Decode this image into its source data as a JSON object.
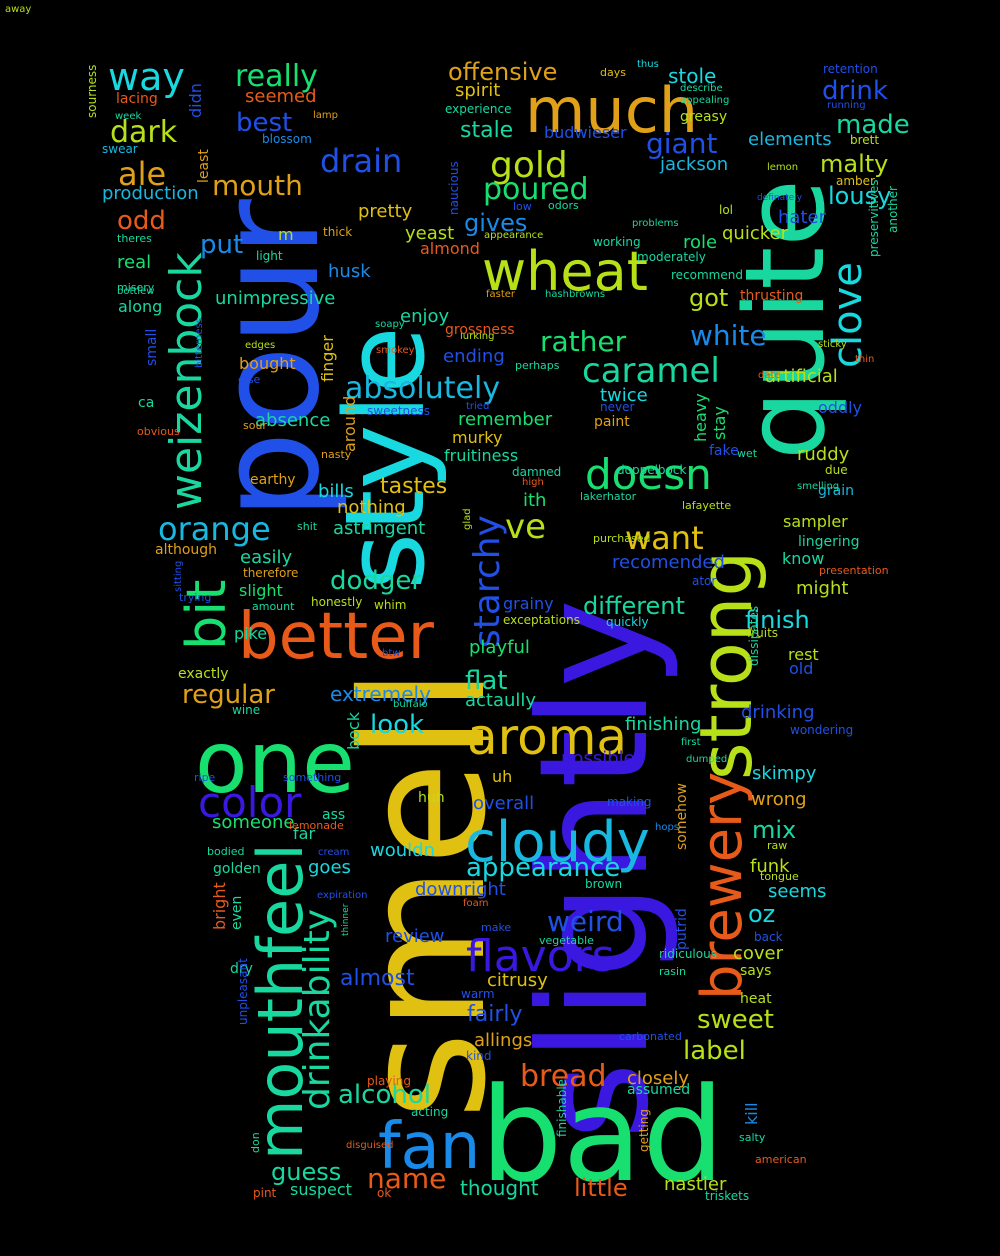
{
  "words": [
    {
      "text": "slightly",
      "color": "#3a18e0"
    },
    {
      "text": "smell",
      "color": "#e0c010"
    },
    {
      "text": "pour",
      "color": "#2050e8"
    },
    {
      "text": "style",
      "color": "#18d8e0"
    },
    {
      "text": "quite",
      "color": "#18d8a0"
    },
    {
      "text": "bad",
      "color": "#18e070"
    },
    {
      "text": "strong",
      "color": "#b8e018"
    },
    {
      "text": "mouthfeel",
      "color": "#18d8a0"
    },
    {
      "text": "one",
      "color": "#18e070"
    },
    {
      "text": "much",
      "color": "#e0a018"
    },
    {
      "text": "better",
      "color": "#e85a1a"
    },
    {
      "text": "fan",
      "color": "#1a8ae8"
    },
    {
      "text": "cloudy",
      "color": "#18b8e0"
    },
    {
      "text": "aroma",
      "color": "#e0c010"
    },
    {
      "text": "wheat",
      "color": "#b8e018"
    },
    {
      "text": "brewery",
      "color": "#e85a1a"
    },
    {
      "text": "weizenbock",
      "color": "#18d8a0"
    },
    {
      "text": "bit",
      "color": "#18e070"
    },
    {
      "text": "color",
      "color": "#3a18e0"
    },
    {
      "text": "drinkability",
      "color": "#18d8a0"
    },
    {
      "text": "way",
      "color": "#18d8e0"
    },
    {
      "text": "flavors",
      "color": "#3a18e0"
    },
    {
      "text": "doesn",
      "color": "#18e070"
    },
    {
      "text": "clove",
      "color": "#18d8e0"
    },
    {
      "text": "bread",
      "color": "#e85a1a"
    },
    {
      "text": "starchy",
      "color": "#2050e8"
    },
    {
      "text": "drain",
      "color": "#2050e8"
    },
    {
      "text": "absolutely",
      "color": "#18b8e0"
    },
    {
      "text": "orange",
      "color": "#18b8e0"
    },
    {
      "text": "caramel",
      "color": "#18d8a0"
    },
    {
      "text": "really",
      "color": "#18e070"
    },
    {
      "text": "gold",
      "color": "#b8e018"
    },
    {
      "text": "dark",
      "color": "#b8e018"
    },
    {
      "text": "mouth",
      "color": "#e0a018"
    },
    {
      "text": "offensive",
      "color": "#e0a018"
    },
    {
      "text": "ale",
      "color": "#e0a018"
    },
    {
      "text": "best",
      "color": "#2050e8"
    },
    {
      "text": "made",
      "color": "#18d8a0"
    },
    {
      "text": "giant",
      "color": "#2050e8"
    },
    {
      "text": "malty",
      "color": "#b8e018"
    },
    {
      "text": "lousy",
      "color": "#18d8e0"
    },
    {
      "text": "poured",
      "color": "#18e070"
    },
    {
      "text": "drink",
      "color": "#2050e8"
    },
    {
      "text": "want",
      "color": "#e0c010"
    },
    {
      "text": "ve",
      "color": "#b8e018"
    },
    {
      "text": "different",
      "color": "#18d8a0"
    },
    {
      "text": "white",
      "color": "#1a8ae8"
    },
    {
      "text": "rather",
      "color": "#18e070"
    },
    {
      "text": "flat",
      "color": "#18d8a0"
    },
    {
      "text": "regular",
      "color": "#e0a018"
    },
    {
      "text": "appearance",
      "color": "#18d8e0"
    },
    {
      "text": "weird",
      "color": "#2050e8"
    },
    {
      "text": "name",
      "color": "#e85a1a"
    },
    {
      "text": "guess",
      "color": "#18d8a0"
    },
    {
      "text": "alcohol",
      "color": "#18d8a0"
    },
    {
      "text": "label",
      "color": "#b8e018"
    },
    {
      "text": "sweet",
      "color": "#b8e018"
    },
    {
      "text": "little",
      "color": "#e85a1a"
    },
    {
      "text": "dodger",
      "color": "#18d8a0"
    },
    {
      "text": "look",
      "color": "#18d8e0"
    },
    {
      "text": "finish",
      "color": "#18d8e0"
    },
    {
      "text": "put",
      "color": "#1a8ae8"
    },
    {
      "text": "tastes",
      "color": "#e0c010"
    },
    {
      "text": "gives",
      "color": "#1a8ae8"
    },
    {
      "text": "got",
      "color": "#b8e018"
    },
    {
      "text": "mix",
      "color": "#18d8a0"
    },
    {
      "text": "oz",
      "color": "#18d8e0"
    },
    {
      "text": "fairly",
      "color": "#2050e8"
    },
    {
      "text": "almost",
      "color": "#2050e8"
    },
    {
      "text": "stale",
      "color": "#18d8a0"
    },
    {
      "text": "odd",
      "color": "#e85a1a"
    },
    {
      "text": "pretty",
      "color": "#e0c010"
    },
    {
      "text": "spirit",
      "color": "#e0c010"
    },
    {
      "text": "stole",
      "color": "#18d8e0"
    },
    {
      "text": "elements",
      "color": "#18b8e0"
    },
    {
      "text": "jackson",
      "color": "#18b8e0"
    },
    {
      "text": "production",
      "color": "#18b8e0"
    },
    {
      "text": "unimpressive",
      "color": "#18d8a0"
    },
    {
      "text": "husk",
      "color": "#1a8ae8"
    },
    {
      "text": "enjoy",
      "color": "#18d8a0"
    },
    {
      "text": "ending",
      "color": "#2050e8"
    },
    {
      "text": "remember",
      "color": "#18e070"
    },
    {
      "text": "twice",
      "color": "#18d8e0"
    },
    {
      "text": "artificial",
      "color": "#b8e018"
    },
    {
      "text": "absence",
      "color": "#18d8a0"
    },
    {
      "text": "murky",
      "color": "#e0c010"
    },
    {
      "text": "fruitiness",
      "color": "#18d8a0"
    },
    {
      "text": "ruddy",
      "color": "#b8e018"
    },
    {
      "text": "sampler",
      "color": "#b8e018"
    },
    {
      "text": "recomended",
      "color": "#2050e8"
    },
    {
      "text": "playful",
      "color": "#18e070"
    },
    {
      "text": "extremely",
      "color": "#1a8ae8"
    },
    {
      "text": "actaully",
      "color": "#18d8a0"
    },
    {
      "text": "skimpy",
      "color": "#18d8e0"
    },
    {
      "text": "overall",
      "color": "#2050e8"
    },
    {
      "text": "wouldn",
      "color": "#18d8e0"
    },
    {
      "text": "downright",
      "color": "#2050e8"
    },
    {
      "text": "review",
      "color": "#2050e8"
    },
    {
      "text": "citrusy",
      "color": "#e0c010"
    },
    {
      "text": "closely",
      "color": "#e0a018"
    },
    {
      "text": "assumed",
      "color": "#18d8a0"
    },
    {
      "text": "thought",
      "color": "#18d8a0"
    },
    {
      "text": "nastier",
      "color": "#b8e018"
    },
    {
      "text": "suspect",
      "color": "#18d8a0"
    },
    {
      "text": "allings",
      "color": "#e0a018"
    },
    {
      "text": "possible",
      "color": "#3a18e0"
    },
    {
      "text": "finishing",
      "color": "#18d8a0"
    },
    {
      "text": "drinking",
      "color": "#2050e8"
    },
    {
      "text": "wrong",
      "color": "#e0a018"
    },
    {
      "text": "funk",
      "color": "#b8e018"
    },
    {
      "text": "seems",
      "color": "#18d8e0"
    },
    {
      "text": "cover",
      "color": "#b8e018"
    },
    {
      "text": "quicker",
      "color": "#b8e018"
    },
    {
      "text": "hater",
      "color": "#2050e8"
    },
    {
      "text": "role",
      "color": "#18e070"
    },
    {
      "text": "lacing",
      "color": "#e85a1a"
    },
    {
      "text": "seemed",
      "color": "#e85a1a"
    },
    {
      "text": "yeast",
      "color": "#b8e018"
    },
    {
      "text": "almond",
      "color": "#e85a1a"
    },
    {
      "text": "budwieser",
      "color": "#2050e8"
    },
    {
      "text": "bills",
      "color": "#18d8e0"
    },
    {
      "text": "nothing",
      "color": "#e0c010"
    },
    {
      "text": "astringent",
      "color": "#18d8a0"
    },
    {
      "text": "easily",
      "color": "#18d8a0"
    },
    {
      "text": "slight",
      "color": "#18e070"
    },
    {
      "text": "someone",
      "color": "#18e070"
    },
    {
      "text": "goes",
      "color": "#18d8e0"
    },
    {
      "text": "real",
      "color": "#18e070"
    },
    {
      "text": "along",
      "color": "#18d8a0"
    },
    {
      "text": "although",
      "color": "#e0a018"
    },
    {
      "text": "pike",
      "color": "#18d8a0"
    },
    {
      "text": "exactly",
      "color": "#b8e018"
    },
    {
      "text": "know",
      "color": "#18d8a0"
    },
    {
      "text": "might",
      "color": "#b8e018"
    },
    {
      "text": "lingering",
      "color": "#18d8a0"
    },
    {
      "text": "old",
      "color": "#2050e8"
    },
    {
      "text": "rest",
      "color": "#b8e018"
    },
    {
      "text": "heavy",
      "color": "#18e070"
    },
    {
      "text": "stay",
      "color": "#18e070"
    },
    {
      "text": "oddly",
      "color": "#2050e8"
    },
    {
      "text": "grain",
      "color": "#18b8e0"
    },
    {
      "text": "bock",
      "color": "#18d8a0"
    },
    {
      "text": "finger",
      "color": "#e0c010"
    },
    {
      "text": "around",
      "color": "#e0a018"
    },
    {
      "text": "ith",
      "color": "#18e070"
    },
    {
      "text": "uh",
      "color": "#e0c010"
    },
    {
      "text": "grainy",
      "color": "#2050e8"
    },
    {
      "text": "putrid",
      "color": "#2050e8"
    },
    {
      "text": "somehow",
      "color": "#e0a018"
    },
    {
      "text": "bright",
      "color": "#e85a1a"
    },
    {
      "text": "golden",
      "color": "#18d8a0"
    },
    {
      "text": "dry",
      "color": "#18d8a0"
    },
    {
      "text": "even",
      "color": "#18d8a0"
    },
    {
      "text": "ass",
      "color": "#18d8a0"
    },
    {
      "text": "far",
      "color": "#18d8a0"
    },
    {
      "text": "huh",
      "color": "#b8e018"
    },
    {
      "text": "kill",
      "color": "#1a8ae8"
    },
    {
      "text": "heat",
      "color": "#b8e018"
    },
    {
      "text": "says",
      "color": "#b8e018"
    },
    {
      "text": "back",
      "color": "#2050e8"
    },
    {
      "text": "ca",
      "color": "#18d8a0"
    },
    {
      "text": "m",
      "color": "#b8e018"
    },
    {
      "text": "small",
      "color": "#2050e8"
    },
    {
      "text": "bought",
      "color": "#e0a018"
    },
    {
      "text": "didn",
      "color": "#2050e8"
    },
    {
      "text": "least",
      "color": "#e0a018"
    },
    {
      "text": "swear",
      "color": "#18b8e0"
    },
    {
      "text": "sourness",
      "color": "#b8e018"
    },
    {
      "text": "week",
      "color": "#18d8a0"
    },
    {
      "text": "lamp",
      "color": "#e0a018"
    },
    {
      "text": "blossom",
      "color": "#1a8ae8"
    },
    {
      "text": "experience",
      "color": "#18d8a0"
    },
    {
      "text": "days",
      "color": "#e0c010"
    },
    {
      "text": "thus",
      "color": "#18d8e0"
    },
    {
      "text": "describe",
      "color": "#18d8a0"
    },
    {
      "text": "appealing",
      "color": "#18d8a0"
    },
    {
      "text": "greasy",
      "color": "#b8e018"
    },
    {
      "text": "retention",
      "color": "#2050e8"
    },
    {
      "text": "running",
      "color": "#2050e8"
    },
    {
      "text": "brett",
      "color": "#b8e018"
    },
    {
      "text": "amber",
      "color": "#e0c010"
    },
    {
      "text": "lemon",
      "color": "#b8e018"
    },
    {
      "text": "definately",
      "color": "#2050e8"
    },
    {
      "text": "lol",
      "color": "#b8e018"
    },
    {
      "text": "thick",
      "color": "#e0a018"
    },
    {
      "text": "naucious",
      "color": "#2050e8"
    },
    {
      "text": "low",
      "color": "#2050e8"
    },
    {
      "text": "odors",
      "color": "#18d8a0"
    },
    {
      "text": "appearance",
      "color": "#b8e018"
    },
    {
      "text": "problems",
      "color": "#18d8a0"
    },
    {
      "text": "moderately",
      "color": "#18d8a0"
    },
    {
      "text": "working",
      "color": "#18d8a0"
    },
    {
      "text": "recommend",
      "color": "#18d8a0"
    },
    {
      "text": "thrusting",
      "color": "#e85a1a"
    },
    {
      "text": "faster",
      "color": "#e0a018"
    },
    {
      "text": "hashbrowns",
      "color": "#18d8a0"
    },
    {
      "text": "soapy",
      "color": "#18d8a0"
    },
    {
      "text": "lurking",
      "color": "#b8e018"
    },
    {
      "text": "grossness",
      "color": "#e85a1a"
    },
    {
      "text": "smokey",
      "color": "#e85a1a"
    },
    {
      "text": "perhaps",
      "color": "#18d8a0"
    },
    {
      "text": "sticky",
      "color": "#b8e018"
    },
    {
      "text": "thin",
      "color": "#e85a1a"
    },
    {
      "text": "another",
      "color": "#18d8a0"
    },
    {
      "text": "preservitives",
      "color": "#18d8a0"
    },
    {
      "text": "date",
      "color": "#e85a1a"
    },
    {
      "text": "tried",
      "color": "#2050e8"
    },
    {
      "text": "never",
      "color": "#2050e8"
    },
    {
      "text": "paint",
      "color": "#e0a018"
    },
    {
      "text": "sweetness",
      "color": "#2050e8"
    },
    {
      "text": "sour",
      "color": "#e0a018"
    },
    {
      "text": "bitterness",
      "color": "#2050e8"
    },
    {
      "text": "obvious",
      "color": "#e85a1a"
    },
    {
      "text": "edges",
      "color": "#b8e018"
    },
    {
      "text": "else",
      "color": "#2050e8"
    },
    {
      "text": "light",
      "color": "#18d8a0"
    },
    {
      "text": "theres",
      "color": "#18d8a0"
    },
    {
      "text": "misery",
      "color": "#18d8a0"
    },
    {
      "text": "bottlew",
      "color": "#18d8a0"
    },
    {
      "text": "nasty",
      "color": "#e0a018"
    },
    {
      "text": "earthy",
      "color": "#e0a018"
    },
    {
      "text": "shit",
      "color": "#18d8a0"
    },
    {
      "text": "high",
      "color": "#e85a1a"
    },
    {
      "text": "damned",
      "color": "#18d8a0"
    },
    {
      "text": "lakerhator",
      "color": "#18d8a0"
    },
    {
      "text": "doppelbock",
      "color": "#18d8a0"
    },
    {
      "text": "fake",
      "color": "#2050e8"
    },
    {
      "text": "wet",
      "color": "#18d8a0"
    },
    {
      "text": "due",
      "color": "#b8e018"
    },
    {
      "text": "smelling",
      "color": "#18d8a0"
    },
    {
      "text": "lafayette",
      "color": "#b8e018"
    },
    {
      "text": "presentation",
      "color": "#e85a1a"
    },
    {
      "text": "purchased",
      "color": "#b8e018"
    },
    {
      "text": "ator",
      "color": "#2050e8"
    },
    {
      "text": "glad",
      "color": "#b8e018"
    },
    {
      "text": "therefore",
      "color": "#e0a018"
    },
    {
      "text": "trying",
      "color": "#2050e8"
    },
    {
      "text": "sitting",
      "color": "#2050e8"
    },
    {
      "text": "amount",
      "color": "#18d8a0"
    },
    {
      "text": "honestly",
      "color": "#b8e018"
    },
    {
      "text": "whim",
      "color": "#b8e018"
    },
    {
      "text": "exceptations",
      "color": "#b8e018"
    },
    {
      "text": "quickly",
      "color": "#18d8e0"
    },
    {
      "text": "fruits",
      "color": "#b8e018"
    },
    {
      "text": "dissipates",
      "color": "#18d8a0"
    },
    {
      "text": "btw",
      "color": "#2050e8"
    },
    {
      "text": "buffalo",
      "color": "#18d8a0"
    },
    {
      "text": "wine",
      "color": "#18d8a0"
    },
    {
      "text": "wondering",
      "color": "#2050e8"
    },
    {
      "text": "first",
      "color": "#18d8a0"
    },
    {
      "text": "dumped",
      "color": "#18d8a0"
    },
    {
      "text": "ripe",
      "color": "#2050e8"
    },
    {
      "text": "something",
      "color": "#2050e8"
    },
    {
      "text": "making",
      "color": "#2050e8"
    },
    {
      "text": "hops",
      "color": "#1a8ae8"
    },
    {
      "text": "raw",
      "color": "#b8e018"
    },
    {
      "text": "lemonade",
      "color": "#e85a1a"
    },
    {
      "text": "bodied",
      "color": "#18d8a0"
    },
    {
      "text": "cream",
      "color": "#2050e8"
    },
    {
      "text": "tongue",
      "color": "#b8e018"
    },
    {
      "text": "expiration",
      "color": "#2050e8"
    },
    {
      "text": "foam",
      "color": "#e85a1a"
    },
    {
      "text": "brown",
      "color": "#18d8a0"
    },
    {
      "text": "thinner",
      "color": "#18d8a0"
    },
    {
      "text": "make",
      "color": "#2050e8"
    },
    {
      "text": "vegetable",
      "color": "#18d8a0"
    },
    {
      "text": "ridiculous",
      "color": "#18d8a0"
    },
    {
      "text": "rasin",
      "color": "#18d8a0"
    },
    {
      "text": "warm",
      "color": "#2050e8"
    },
    {
      "text": "unpleasant",
      "color": "#2050e8"
    },
    {
      "text": "carbonated",
      "color": "#2050e8"
    },
    {
      "text": "kind",
      "color": "#2050e8"
    },
    {
      "text": "playing",
      "color": "#e85a1a"
    },
    {
      "text": "acting",
      "color": "#18d8a0"
    },
    {
      "text": "disguised",
      "color": "#e85a1a"
    },
    {
      "text": "don",
      "color": "#18d8a0"
    },
    {
      "text": "pint",
      "color": "#e85a1a"
    },
    {
      "text": "ok",
      "color": "#e85a1a"
    },
    {
      "text": "finishable",
      "color": "#18d8a0"
    },
    {
      "text": "getting",
      "color": "#e0a018"
    },
    {
      "text": "triskets",
      "color": "#18d8a0"
    },
    {
      "text": "american",
      "color": "#e85a1a"
    },
    {
      "text": "salty",
      "color": "#18d8a0"
    },
    {
      "text": "away",
      "color": "#b8e018"
    }
  ]
}
